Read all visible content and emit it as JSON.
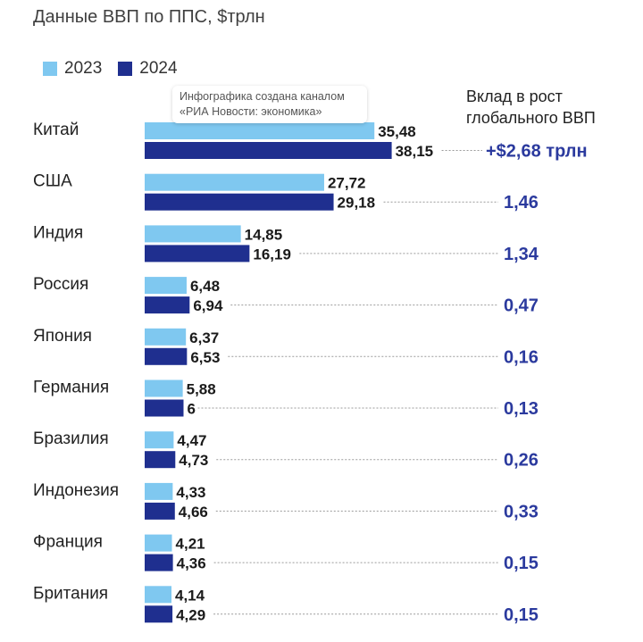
{
  "header": {
    "subtitle": "Данные ВВП по ППС, $трлн",
    "contribution_header_line1": "Вклад в рост",
    "contribution_header_line2": "глобального ВВП"
  },
  "watermark": {
    "line1": "Инфографика создана каналом",
    "line2": "«РИА Новости: экономика»"
  },
  "colors": {
    "y2023": "#7fc8f0",
    "y2024": "#1f2f8f",
    "contribution": "#2b3a9e"
  },
  "chart_data": {
    "type": "bar",
    "orientation": "horizontal",
    "title": "Данные ВВП по ППС, $трлн",
    "categories": [
      "Китай",
      "США",
      "Индия",
      "Россия",
      "Япония",
      "Германия",
      "Бразилия",
      "Индонезия",
      "Франция",
      "Британия"
    ],
    "series": [
      {
        "name": "2023",
        "values": [
          35.48,
          27.72,
          14.85,
          6.48,
          6.37,
          5.88,
          4.47,
          4.33,
          4.21,
          4.14
        ],
        "labels": [
          "35,48",
          "27,72",
          "14,85",
          "6,48",
          "6,37",
          "5,88",
          "4,47",
          "4,33",
          "4,21",
          "4,14"
        ]
      },
      {
        "name": "2024",
        "values": [
          38.15,
          29.18,
          16.19,
          6.94,
          6.53,
          6,
          4.73,
          4.66,
          4.36,
          4.29
        ],
        "labels": [
          "38,15",
          "29,18",
          "16,19",
          "6,94",
          "6,53",
          "6",
          "4,73",
          "4,66",
          "4,36",
          "4,29"
        ]
      }
    ],
    "contribution": {
      "title": "Вклад в рост глобального ВВП",
      "values": [
        2.68,
        1.46,
        1.34,
        0.47,
        0.16,
        0.13,
        0.26,
        0.33,
        0.15,
        0.15
      ],
      "labels": [
        "+$2,68 трлн",
        "1,46",
        "1,34",
        "0,47",
        "0,16",
        "0,13",
        "0,26",
        "0,33",
        "0,15",
        "0,15"
      ]
    },
    "legend": [
      "2023",
      "2024"
    ],
    "legend_position": "top-left"
  }
}
